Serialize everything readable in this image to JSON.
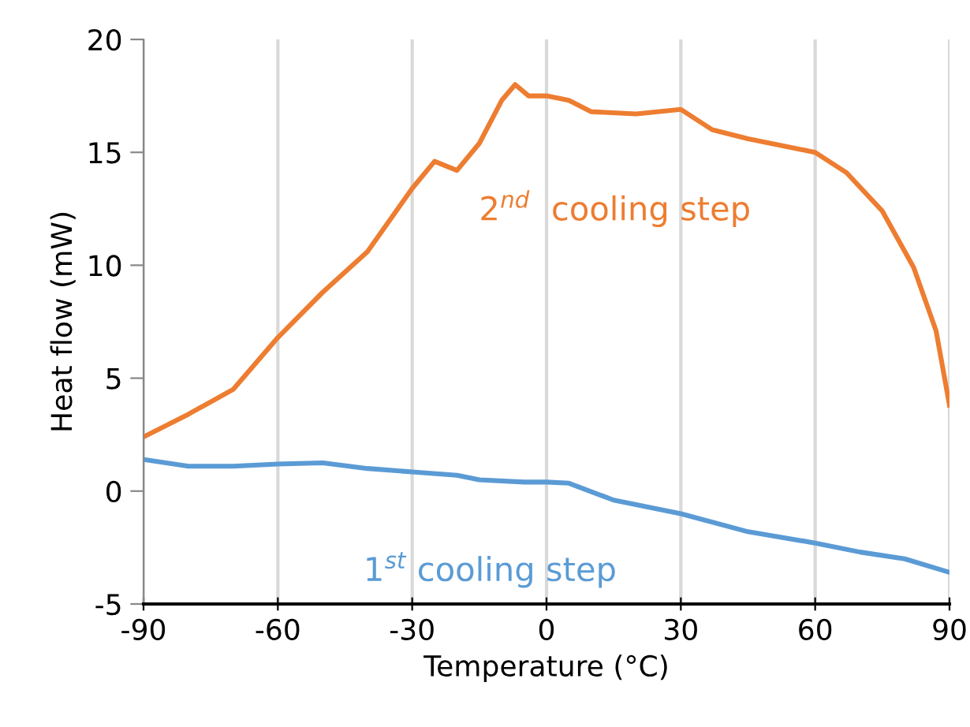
{
  "chart_data": {
    "type": "line",
    "xlabel": "Temperature (°C)",
    "ylabel": "Heat flow (mW)",
    "xlim": [
      -90,
      90
    ],
    "xticks": [
      -90,
      -60,
      -30,
      0,
      30,
      60,
      90
    ],
    "ylim": [
      -5,
      20
    ],
    "yticks": [
      -5,
      0,
      5,
      10,
      15,
      20
    ],
    "grid": "x",
    "legend": false,
    "series": [
      {
        "name": "1$^{st}$ cooling step",
        "color": "#5b9bd5",
        "x": [
          -90,
          -80,
          -70,
          -60,
          -50,
          -40,
          -30,
          -20,
          -15,
          -5,
          0,
          5,
          15,
          30,
          45,
          60,
          70,
          80,
          90
        ],
        "values": [
          1.4,
          1.1,
          1.1,
          1.2,
          1.25,
          1.0,
          0.85,
          0.7,
          0.5,
          0.4,
          0.4,
          0.35,
          -0.4,
          -1.0,
          -1.8,
          -2.3,
          -2.7,
          -3.0,
          -3.6
        ]
      },
      {
        "name": "2$^{nd}$  cooling step",
        "color": "#ed7d31",
        "x": [
          -90,
          -80,
          -70,
          -60,
          -50,
          -40,
          -30,
          -25,
          -20,
          -15,
          -10,
          -7,
          -4,
          0,
          5,
          10,
          20,
          30,
          37,
          45,
          55,
          60,
          67,
          75,
          82,
          87,
          90
        ],
        "values": [
          2.4,
          3.4,
          4.5,
          6.8,
          8.8,
          10.6,
          13.4,
          14.6,
          14.2,
          15.4,
          17.3,
          18.0,
          17.5,
          17.5,
          17.3,
          16.8,
          16.7,
          16.9,
          16.0,
          15.6,
          15.2,
          15.0,
          14.1,
          12.4,
          9.9,
          7.1,
          3.8
        ]
      }
    ]
  }
}
